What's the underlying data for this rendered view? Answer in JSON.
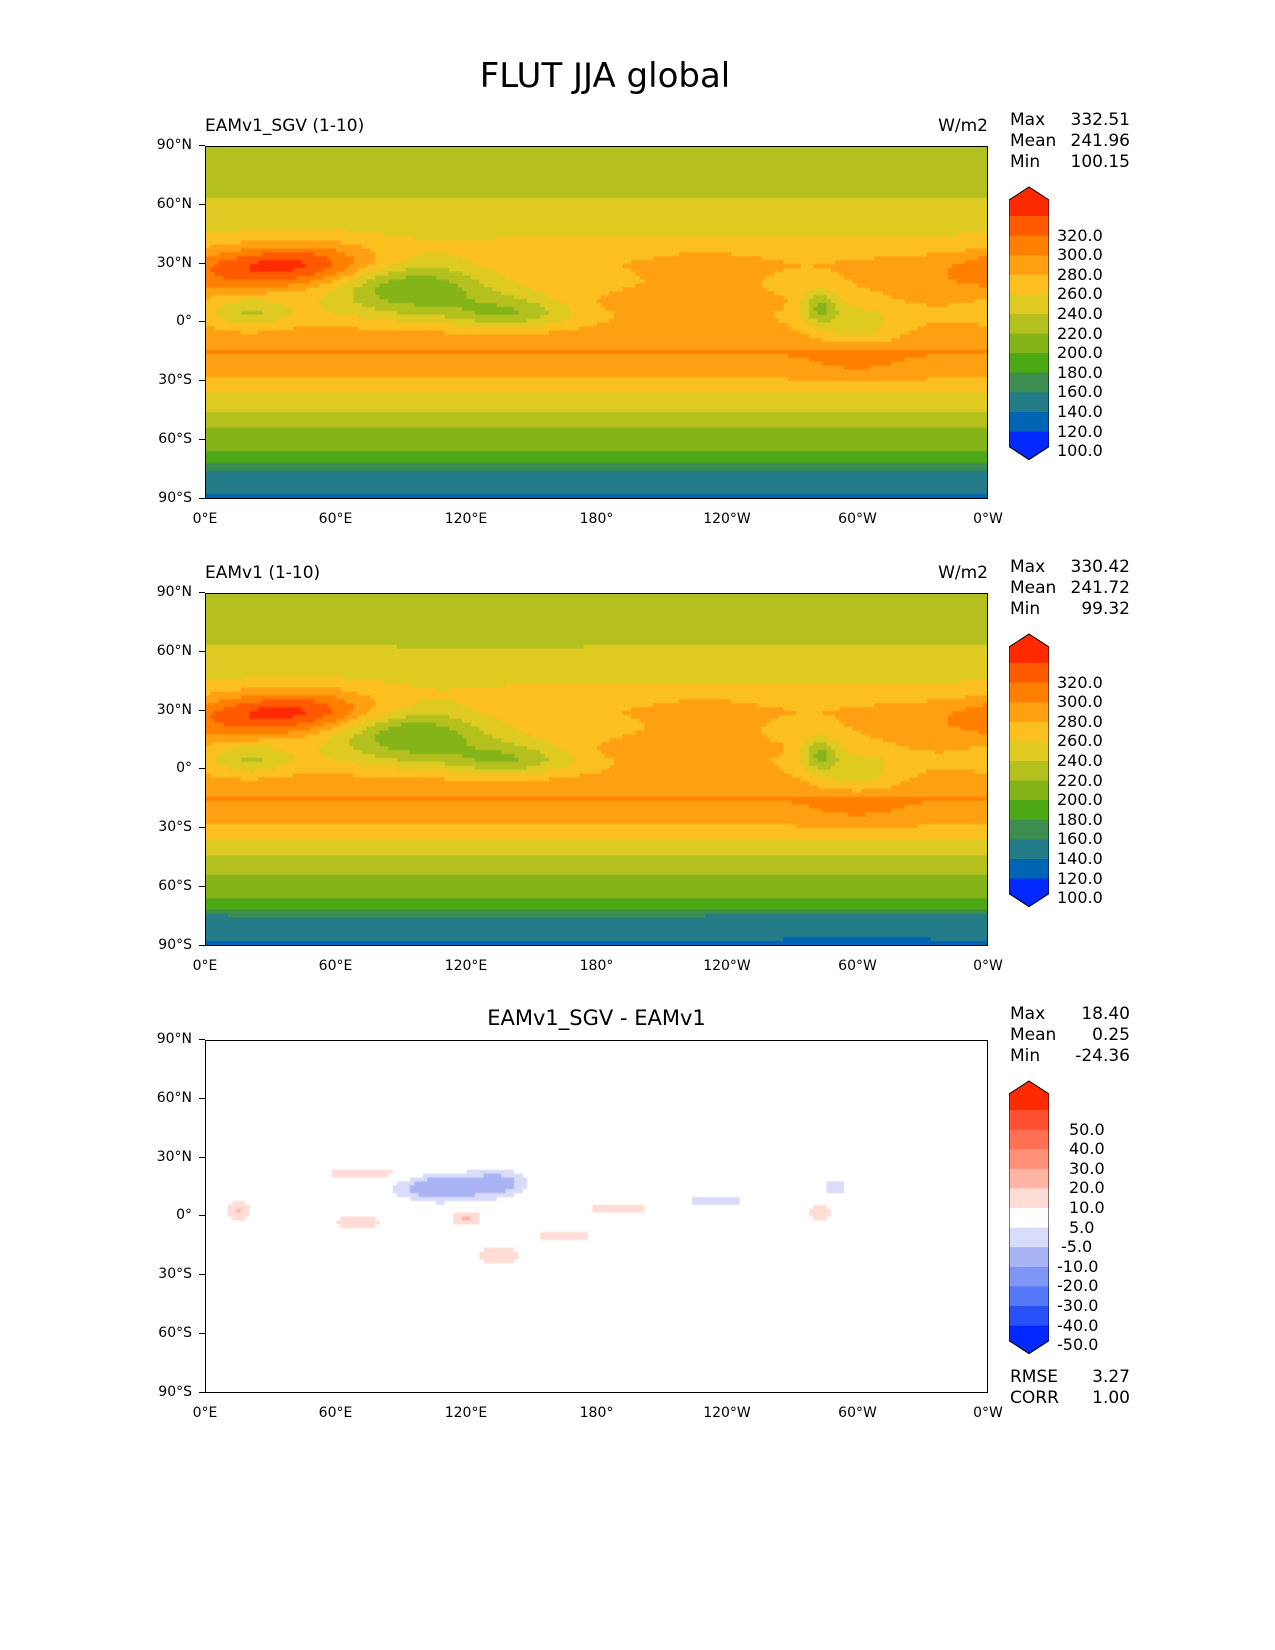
{
  "figure_title": "FLUT JJA global",
  "chart_data": [
    {
      "type": "heatmap",
      "title": "EAMv1_SGV (1-10)",
      "units": "W/m2",
      "stats": {
        "Max": "332.51",
        "Mean": "241.96",
        "Min": "100.15"
      },
      "levels": [
        "320.0",
        "300.0",
        "280.0",
        "260.0",
        "240.0",
        "220.0",
        "200.0",
        "180.0",
        "160.0",
        "140.0",
        "120.0",
        "100.0"
      ],
      "colors": [
        "#ff2a00",
        "#ff5a00",
        "#ff7f00",
        "#ff9f12",
        "#fbc020",
        "#dfca22",
        "#b4c01e",
        "#84b418",
        "#4ca814",
        "#3d8c50",
        "#237c88",
        "#0064b4",
        "#0028ff"
      ],
      "x_ticks": [
        "0°E",
        "60°E",
        "120°E",
        "180°",
        "120°W",
        "60°W",
        "0°W"
      ],
      "y_ticks": [
        "90°N",
        "60°N",
        "30°N",
        "0°",
        "30°S",
        "60°S",
        "90°S"
      ],
      "xlim": [
        0,
        360
      ],
      "ylim": [
        -90,
        90
      ],
      "offset": 0.25
    },
    {
      "type": "heatmap",
      "title": "EAMv1 (1-10)",
      "units": "W/m2",
      "stats": {
        "Max": "330.42",
        "Mean": "241.72",
        "Min": "99.32"
      },
      "levels": [
        "320.0",
        "300.0",
        "280.0",
        "260.0",
        "240.0",
        "220.0",
        "200.0",
        "180.0",
        "160.0",
        "140.0",
        "120.0",
        "100.0"
      ],
      "colors": [
        "#ff2a00",
        "#ff5a00",
        "#ff7f00",
        "#ff9f12",
        "#fbc020",
        "#dfca22",
        "#b4c01e",
        "#84b418",
        "#4ca814",
        "#3d8c50",
        "#237c88",
        "#0064b4",
        "#0028ff"
      ],
      "x_ticks": [
        "0°E",
        "60°E",
        "120°E",
        "180°",
        "120°W",
        "60°W",
        "0°W"
      ],
      "y_ticks": [
        "90°N",
        "60°N",
        "30°N",
        "0°",
        "30°S",
        "60°S",
        "90°S"
      ],
      "xlim": [
        0,
        360
      ],
      "ylim": [
        -90,
        90
      ],
      "offset": 0
    },
    {
      "type": "heatmap",
      "title": "EAMv1_SGV - EAMv1",
      "units": "",
      "stats": {
        "Max": "18.40",
        "Mean": "0.25",
        "Min": "-24.36"
      },
      "levels": [
        "50.0",
        "40.0",
        "30.0",
        "20.0",
        "10.0",
        "5.0",
        "-5.0",
        "-10.0",
        "-20.0",
        "-30.0",
        "-40.0",
        "-50.0"
      ],
      "colors": [
        "#ff2a00",
        "#ff4e30",
        "#ff7055",
        "#ff9078",
        "#ffb4a4",
        "#ffdcd6",
        "#ffffff",
        "#d8dcfa",
        "#aab4f5",
        "#8096f5",
        "#5578f8",
        "#2a50fa",
        "#0028ff"
      ],
      "x_ticks": [
        "0°E",
        "60°E",
        "120°E",
        "180°",
        "120°W",
        "60°W",
        "0°W"
      ],
      "y_ticks": [
        "90°N",
        "60°N",
        "30°N",
        "0°",
        "30°S",
        "60°S",
        "90°S"
      ],
      "xlim": [
        0,
        360
      ],
      "ylim": [
        -90,
        90
      ],
      "metrics": {
        "RMSE": "3.27",
        "CORR": "1.00"
      }
    }
  ]
}
